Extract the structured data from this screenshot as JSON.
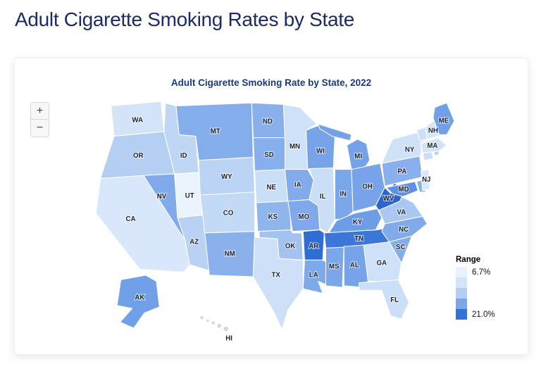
{
  "page": {
    "title": "Adult Cigarette Smoking Rates by State"
  },
  "chart": {
    "title": "Adult Cigarette Smoking Rate by State, 2022"
  },
  "controls": {
    "zoom_in_label": "+",
    "zoom_out_label": "−"
  },
  "legend": {
    "title": "Range",
    "min_label": "6.7%",
    "max_label": "21.0%",
    "colors": [
      "#e9f2fc",
      "#d4e4f9",
      "#b4cff3",
      "#7ba7e8",
      "#3272d9"
    ]
  },
  "colors": {
    "page_title": "#1b2a68",
    "chart_title": "#173a7e",
    "state_label": "#1b2233",
    "state_border": "#ffffff",
    "darkest_state": "#2c65cc",
    "lightest_state": "#ebf3fc"
  },
  "chart_data": {
    "type": "choropleth",
    "region": "United States",
    "title": "Adult Cigarette Smoking Rate by State, 2022",
    "value_min_label": "6.7%",
    "value_max_label": "21.0%",
    "legend_title": "Range",
    "states": [
      {
        "abbr": "WA",
        "fill": "#d3e3f8",
        "labeled": true
      },
      {
        "abbr": "OR",
        "fill": "#b5cff3",
        "labeled": true
      },
      {
        "abbr": "CA",
        "fill": "#d8e7fa",
        "labeled": true
      },
      {
        "abbr": "NV",
        "fill": "#80aaea",
        "labeled": true
      },
      {
        "abbr": "ID",
        "fill": "#c0d6f5",
        "labeled": true
      },
      {
        "abbr": "UT",
        "fill": "#ebf3fc",
        "labeled": true
      },
      {
        "abbr": "AZ",
        "fill": "#b9d2f4",
        "labeled": true
      },
      {
        "abbr": "MT",
        "fill": "#84adeb",
        "labeled": true
      },
      {
        "abbr": "WY",
        "fill": "#bbd3f4",
        "labeled": true
      },
      {
        "abbr": "CO",
        "fill": "#c2d9f6",
        "labeled": true
      },
      {
        "abbr": "NM",
        "fill": "#8bb1ec",
        "labeled": true
      },
      {
        "abbr": "ND",
        "fill": "#8ab0ec",
        "labeled": true
      },
      {
        "abbr": "SD",
        "fill": "#87afec",
        "labeled": true
      },
      {
        "abbr": "NE",
        "fill": "#c9def7",
        "labeled": true
      },
      {
        "abbr": "KS",
        "fill": "#8fb5ed",
        "labeled": true
      },
      {
        "abbr": "OK",
        "fill": "#a3c2ef",
        "labeled": true
      },
      {
        "abbr": "TX",
        "fill": "#cde0f8",
        "labeled": true
      },
      {
        "abbr": "MN",
        "fill": "#cfe1f8",
        "labeled": true
      },
      {
        "abbr": "IA",
        "fill": "#82abeb",
        "labeled": true
      },
      {
        "abbr": "MO",
        "fill": "#7fa9ea",
        "labeled": true
      },
      {
        "abbr": "AR",
        "fill": "#2f6dd3",
        "labeled": true
      },
      {
        "abbr": "LA",
        "fill": "#7ea9ea",
        "labeled": true
      },
      {
        "abbr": "WI",
        "fill": "#77a4e9",
        "labeled": true
      },
      {
        "abbr": "IL",
        "fill": "#cadef7",
        "labeled": true
      },
      {
        "abbr": "MS",
        "fill": "#7aa6ea",
        "labeled": true
      },
      {
        "abbr": "MI",
        "fill": "#74a2e9",
        "labeled": true
      },
      {
        "abbr": "IN",
        "fill": "#7aa6ea",
        "labeled": true
      },
      {
        "abbr": "OH",
        "fill": "#77a4e9",
        "labeled": true
      },
      {
        "abbr": "KY",
        "fill": "#6d9de7",
        "labeled": true
      },
      {
        "abbr": "TN",
        "fill": "#3b77d8",
        "labeled": true
      },
      {
        "abbr": "AL",
        "fill": "#76a3e9",
        "labeled": true
      },
      {
        "abbr": "GA",
        "fill": "#cfe1f8",
        "labeled": true
      },
      {
        "abbr": "FL",
        "fill": "#cbdff7",
        "labeled": true
      },
      {
        "abbr": "SC",
        "fill": "#84adeb",
        "labeled": true
      },
      {
        "abbr": "NC",
        "fill": "#80aaea",
        "labeled": true
      },
      {
        "abbr": "VA",
        "fill": "#a9c8f1",
        "labeled": true
      },
      {
        "abbr": "WV",
        "fill": "#2c65cc",
        "labeled": true
      },
      {
        "abbr": "PA",
        "fill": "#89b0ec",
        "labeled": true
      },
      {
        "abbr": "MD",
        "fill": "#5e91e3",
        "labeled": true
      },
      {
        "abbr": "DE",
        "fill": "#8bb2ec",
        "labeled": false
      },
      {
        "abbr": "NJ",
        "fill": "#d9e8fa",
        "labeled": true
      },
      {
        "abbr": "NY",
        "fill": "#d0e2f8",
        "labeled": true
      },
      {
        "abbr": "CT",
        "fill": "#cadef7",
        "labeled": false
      },
      {
        "abbr": "RI",
        "fill": "#b8d1f4",
        "labeled": false
      },
      {
        "abbr": "MA",
        "fill": "#d2e3f8",
        "labeled": true
      },
      {
        "abbr": "VT",
        "fill": "#cfe1f8",
        "labeled": false
      },
      {
        "abbr": "NH",
        "fill": "#d7e6f9",
        "labeled": true
      },
      {
        "abbr": "ME",
        "fill": "#70a0e8",
        "labeled": true
      },
      {
        "abbr": "AK",
        "fill": "#70a0e8",
        "labeled": true
      },
      {
        "abbr": "HI",
        "fill": "#d2d8de",
        "labeled": true
      }
    ]
  }
}
